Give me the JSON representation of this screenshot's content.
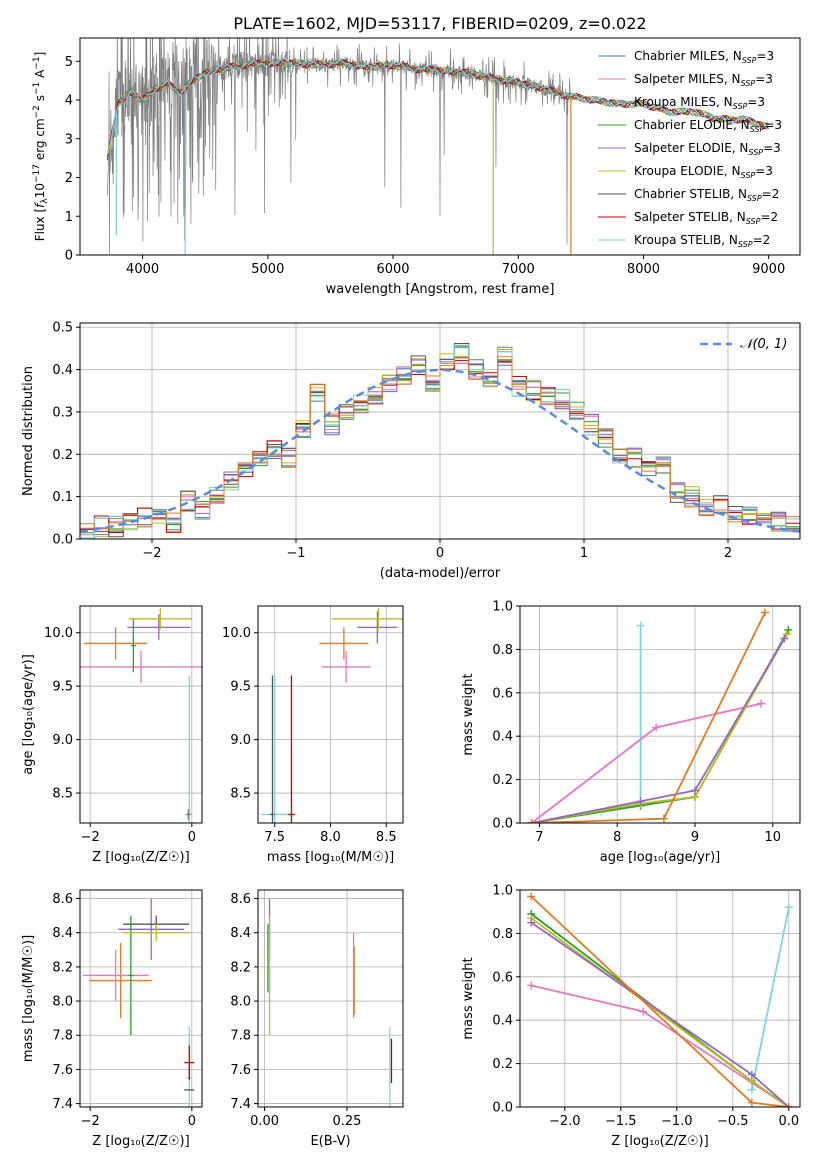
{
  "figure_title": "PLATE=1602, MJD=53117, FIBERID=0209, z=0.022",
  "colors": {
    "chabrier_miles": "#4c72b0",
    "salpeter_miles": "#e377c2",
    "kroupa_miles": "#7f7f7f",
    "chabrier_elodie": "#2ca02c",
    "salpeter_elodie": "#9467bd",
    "kroupa_elodie": "#bcbd22",
    "chabrier_stelib": "#555555",
    "salpeter_stelib": "#c00000",
    "kroupa_stelib": "#7ed4dc",
    "orange": "#e07b22",
    "gaussian": "#5b8bd9"
  },
  "chart_data": [
    {
      "type": "line",
      "title": "PLATE=1602, MJD=53117, FIBERID=0209, z=0.022",
      "xlabel": "wavelength [Angstrom, rest frame]",
      "ylabel": "Flux [f_λ 10^-17 erg cm^-2 s^-1 A^-1]",
      "ylabel_parts": [
        "Flux [",
        "f",
        "λ",
        "10",
        "−17",
        " erg cm",
        "−2",
        " s",
        "−1",
        " A",
        "−1",
        "]"
      ],
      "xlim": [
        3500,
        9250
      ],
      "ylim": [
        0,
        5.6
      ],
      "xticks": [
        4000,
        5000,
        6000,
        7000,
        8000,
        9000
      ],
      "yticks": [
        0,
        1,
        2,
        3,
        4,
        5
      ],
      "legend_position": "top-right",
      "legend": [
        {
          "name": "Chabrier MILES",
          "nssp": "3",
          "color": "#4c72b0"
        },
        {
          "name": "Salpeter MILES",
          "nssp": "3",
          "color": "#e377c2"
        },
        {
          "name": "Kroupa MILES",
          "nssp": "3",
          "color": "#7f7f7f"
        },
        {
          "name": "Chabrier ELODIE",
          "nssp": "3",
          "color": "#2ca02c"
        },
        {
          "name": "Salpeter ELODIE",
          "nssp": "3",
          "color": "#9467bd"
        },
        {
          "name": "Kroupa ELODIE",
          "nssp": "3",
          "color": "#bcbd22"
        },
        {
          "name": "Chabrier STELIB",
          "nssp": "2",
          "color": "#555555"
        },
        {
          "name": "Salpeter STELIB",
          "nssp": "2",
          "color": "#c00000"
        },
        {
          "name": "Kroupa STELIB",
          "nssp": "2",
          "color": "#7ed4dc"
        }
      ],
      "nssp_prefix": ", N",
      "nssp_sub": "SSP",
      "continuum": {
        "x": [
          3720,
          3800,
          3900,
          4000,
          4100,
          4200,
          4300,
          4400,
          4500,
          4600,
          4800,
          5000,
          5200,
          5400,
          5600,
          5800,
          6000,
          6200,
          6400,
          6600,
          6800,
          7000,
          7200,
          7400,
          7600,
          7800,
          8000,
          8200,
          8400,
          8600,
          8800,
          9000
        ],
        "y": [
          2.5,
          3.9,
          4.2,
          4.0,
          4.3,
          4.4,
          4.2,
          4.5,
          4.7,
          4.8,
          4.9,
          4.95,
          4.95,
          4.9,
          4.95,
          4.85,
          4.9,
          4.8,
          4.75,
          4.7,
          4.55,
          4.45,
          4.3,
          4.1,
          4.0,
          3.9,
          3.9,
          3.7,
          3.7,
          3.5,
          3.5,
          3.3
        ]
      },
      "noise_range": [
        3720,
        7420
      ],
      "model_dips": [
        {
          "x": 4340,
          "y": 0.0,
          "color": "#7ed4dc"
        },
        {
          "x": 3790,
          "y": 0.5,
          "color": "#7ed4dc"
        },
        {
          "x": 6800,
          "y": 0.0,
          "color": "#bcbd22"
        },
        {
          "x": 7420,
          "y": 0.0,
          "color": "#e07b22"
        }
      ]
    },
    {
      "type": "line",
      "xlabel": "(data-model)/error",
      "ylabel": "Normed distribution",
      "xlim": [
        -2.5,
        2.5
      ],
      "ylim": [
        0,
        0.51
      ],
      "xticks": [
        -2,
        -1,
        0,
        1,
        2
      ],
      "xtick_labels": [
        "−2",
        "−1",
        "0",
        "1",
        "2"
      ],
      "yticks": [
        0.0,
        0.1,
        0.2,
        0.3,
        0.4,
        0.5
      ],
      "ytick_labels": [
        "0.0",
        "0.1",
        "0.2",
        "0.3",
        "0.4",
        "0.5"
      ],
      "legend_position": "top-right",
      "gaussian_label": "𝒩(0, 1)",
      "bin_width": 0.1,
      "histogram_x": [
        -2.5,
        -2.4,
        -2.3,
        -2.2,
        -2.1,
        -2.0,
        -1.9,
        -1.8,
        -1.7,
        -1.6,
        -1.5,
        -1.4,
        -1.3,
        -1.2,
        -1.1,
        -1.0,
        -0.9,
        -0.8,
        -0.7,
        -0.6,
        -0.5,
        -0.4,
        -0.3,
        -0.2,
        -0.1,
        0.0,
        0.1,
        0.2,
        0.3,
        0.4,
        0.5,
        0.6,
        0.7,
        0.8,
        0.9,
        1.0,
        1.1,
        1.2,
        1.3,
        1.4,
        1.5,
        1.6,
        1.7,
        1.8,
        1.9,
        2.0,
        2.1,
        2.2,
        2.3,
        2.4
      ],
      "histogram_y": [
        0.02,
        0.03,
        0.03,
        0.04,
        0.05,
        0.05,
        0.04,
        0.09,
        0.07,
        0.1,
        0.14,
        0.17,
        0.19,
        0.21,
        0.19,
        0.26,
        0.35,
        0.27,
        0.3,
        0.32,
        0.34,
        0.37,
        0.39,
        0.41,
        0.37,
        0.42,
        0.44,
        0.4,
        0.38,
        0.43,
        0.36,
        0.35,
        0.34,
        0.33,
        0.3,
        0.27,
        0.24,
        0.2,
        0.19,
        0.17,
        0.18,
        0.11,
        0.1,
        0.08,
        0.08,
        0.06,
        0.05,
        0.04,
        0.04,
        0.03
      ]
    },
    {
      "type": "scatter",
      "xlabel": "Z [log₁₀(Z/Z☉)]",
      "ylabel": "age  [log₁₀(age/yr)]",
      "xlim": [
        -2.2,
        0.2
      ],
      "ylim": [
        8.22,
        10.25
      ],
      "xticks": [
        -2,
        0
      ],
      "xtick_labels": [
        "−2",
        "0"
      ],
      "yticks": [
        8.5,
        9.0,
        9.5,
        10.0
      ],
      "ytick_labels": [
        "8.5",
        "9.0",
        "9.5",
        "10.0"
      ],
      "errorbars": [
        {
          "x": -1.5,
          "y": 9.9,
          "xerr": 0.62,
          "yerr": 0.15,
          "color": "#e07b22"
        },
        {
          "x": -1.0,
          "y": 9.68,
          "xerr": 1.28,
          "yerr": 0.15,
          "color": "#e377c2"
        },
        {
          "x": -0.65,
          "y": 10.05,
          "xerr": 0.62,
          "yerr": 0.12,
          "color": "#9467bd"
        },
        {
          "x": -0.62,
          "y": 10.13,
          "xerr": 0.62,
          "yerr": 0.1,
          "color": "#bcbd22"
        },
        {
          "x": -1.15,
          "y": 9.88,
          "xerr": 0.05,
          "yerr": 0.25,
          "color": "#2ca02c"
        },
        {
          "x": -0.05,
          "y": 8.3,
          "xerr": 0.05,
          "yerr": 1.3,
          "color": "#7ed4dc"
        },
        {
          "x": -0.07,
          "y": 8.3,
          "xerr": 0.05,
          "yerr": 0.05,
          "color": "#7f7f7f"
        }
      ]
    },
    {
      "type": "scatter",
      "xlabel": "mass [log₁₀(M/M☉)]",
      "xlim": [
        7.35,
        8.65
      ],
      "ylim": [
        8.22,
        10.25
      ],
      "xticks": [
        7.5,
        8.0,
        8.5
      ],
      "xtick_labels": [
        "7.5",
        "8.0",
        "8.5"
      ],
      "yticks": [
        8.5,
        9.0,
        9.5,
        10.0
      ],
      "ytick_labels": [
        "8.5",
        "9.0",
        "9.5",
        "10.0"
      ],
      "errorbars": [
        {
          "x": 8.12,
          "y": 9.9,
          "xerr": 0.22,
          "yerr": 0.15,
          "color": "#e07b22"
        },
        {
          "x": 8.14,
          "y": 9.68,
          "xerr": 0.22,
          "yerr": 0.15,
          "color": "#e377c2"
        },
        {
          "x": 8.42,
          "y": 10.05,
          "xerr": 0.18,
          "yerr": 0.15,
          "color": "#9467bd"
        },
        {
          "x": 8.43,
          "y": 10.13,
          "xerr": 0.42,
          "yerr": 0.1,
          "color": "#bcbd22"
        },
        {
          "x": 7.5,
          "y": 8.3,
          "xerr": 0.12,
          "yerr": 1.3,
          "color": "#7ed4dc"
        },
        {
          "x": 7.48,
          "y": 8.3,
          "xerr": 0.02,
          "yerr": 1.3,
          "color": "#555555"
        },
        {
          "x": 7.65,
          "y": 8.3,
          "xerr": 0.03,
          "yerr": 1.3,
          "color": "#c00000"
        }
      ]
    },
    {
      "type": "line",
      "xlabel": "age  [log₁₀(age/yr)]",
      "ylabel": "mass weight",
      "xlim": [
        6.75,
        10.35
      ],
      "ylim": [
        0,
        1.0
      ],
      "xticks": [
        7,
        8,
        9,
        10
      ],
      "xtick_labels": [
        "7",
        "8",
        "9",
        "10"
      ],
      "yticks": [
        0.0,
        0.2,
        0.4,
        0.6,
        0.8,
        1.0
      ],
      "ytick_labels": [
        "0.0",
        "0.2",
        "0.4",
        "0.6",
        "0.8",
        "1.0"
      ],
      "series": [
        {
          "color": "#7ed4dc",
          "x": [
            8.3,
            8.3
          ],
          "y": [
            0.91,
            0.08
          ]
        },
        {
          "color": "#e377c2",
          "x": [
            6.9,
            8.5,
            9.85
          ],
          "y": [
            0.0,
            0.44,
            0.55
          ]
        },
        {
          "color": "#2ca02c",
          "x": [
            6.9,
            8.3,
            9.0,
            10.2
          ],
          "y": [
            0.0,
            0.08,
            0.12,
            0.89
          ]
        },
        {
          "color": "#bcbd22",
          "x": [
            6.9,
            8.3,
            9.0,
            10.18
          ],
          "y": [
            0.0,
            0.09,
            0.12,
            0.87
          ]
        },
        {
          "color": "#9467bd",
          "x": [
            6.9,
            8.3,
            9.0,
            10.15
          ],
          "y": [
            0.0,
            0.1,
            0.15,
            0.85
          ]
        },
        {
          "color": "#e07b22",
          "x": [
            6.9,
            8.6,
            9.9
          ],
          "y": [
            0.0,
            0.02,
            0.97
          ]
        }
      ]
    },
    {
      "type": "scatter",
      "xlabel": "Z [log₁₀(Z/Z☉)]",
      "ylabel": "mass [log₁₀(M/M☉)]",
      "xlim": [
        -2.2,
        0.2
      ],
      "ylim": [
        7.38,
        8.65
      ],
      "xticks": [
        -2,
        0
      ],
      "xtick_labels": [
        "−2",
        "0"
      ],
      "yticks": [
        7.4,
        7.6,
        7.8,
        8.0,
        8.2,
        8.4,
        8.6
      ],
      "ytick_labels": [
        "7.4",
        "7.6",
        "7.8",
        "8.0",
        "8.2",
        "8.4",
        "8.6"
      ],
      "errorbars": [
        {
          "x": -1.4,
          "y": 8.12,
          "xerr": 0.62,
          "yerr": 0.22,
          "color": "#e07b22"
        },
        {
          "x": -1.5,
          "y": 8.15,
          "xerr": 0.65,
          "yerr": 0.15,
          "color": "#e377c2"
        },
        {
          "x": -0.8,
          "y": 8.42,
          "xerr": 0.65,
          "yerr": 0.18,
          "color": "#9467bd"
        },
        {
          "x": -0.7,
          "y": 8.45,
          "xerr": 0.65,
          "yerr": 0.05,
          "color": "#555555"
        },
        {
          "x": -1.2,
          "y": 8.15,
          "xerr": 0.05,
          "yerr": 0.35,
          "color": "#2ca02c"
        },
        {
          "x": -0.7,
          "y": 8.4,
          "xerr": 0.65,
          "yerr": 0.05,
          "color": "#bcbd22"
        },
        {
          "x": -0.05,
          "y": 7.55,
          "xerr": 0.05,
          "yerr": 0.3,
          "color": "#7ed4dc"
        },
        {
          "x": -0.05,
          "y": 7.64,
          "xerr": 0.1,
          "yerr": 0.1,
          "color": "#c00000"
        },
        {
          "x": -0.05,
          "y": 7.48,
          "xerr": 0.1,
          "yerr": 0.0,
          "color": "#555555"
        }
      ]
    },
    {
      "type": "scatter",
      "xlabel": "E(B-V)",
      "xlim": [
        -0.02,
        0.42
      ],
      "ylim": [
        7.38,
        8.65
      ],
      "xticks": [
        0.0,
        0.25
      ],
      "xtick_labels": [
        "0.00",
        "0.25"
      ],
      "yticks": [
        7.4,
        7.6,
        7.8,
        8.0,
        8.2,
        8.4,
        8.6
      ],
      "ytick_labels": [
        "7.4",
        "7.6",
        "7.8",
        "8.0",
        "8.2",
        "8.4",
        "8.6"
      ],
      "errorbars": [
        {
          "x": 0.015,
          "y": 8.45,
          "xerr": 0,
          "yerr": 0.15,
          "color": "#9467bd"
        },
        {
          "x": 0.015,
          "y": 8.15,
          "xerr": 0,
          "yerr": 0.35,
          "color": "#bcbd22"
        },
        {
          "x": 0.01,
          "y": 8.25,
          "xerr": 0,
          "yerr": 0.2,
          "color": "#2ca02c"
        },
        {
          "x": 0.27,
          "y": 8.15,
          "xerr": 0,
          "yerr": 0.25,
          "color": "#e377c2"
        },
        {
          "x": 0.272,
          "y": 8.12,
          "xerr": 0,
          "yerr": 0.2,
          "color": "#e07b22"
        },
        {
          "x": 0.38,
          "y": 7.6,
          "xerr": 0,
          "yerr": 0.25,
          "color": "#7ed4dc"
        },
        {
          "x": 0.385,
          "y": 7.65,
          "xerr": 0,
          "yerr": 0.13,
          "color": "#c00000"
        }
      ]
    },
    {
      "type": "line",
      "xlabel": "Z [log₁₀(Z/Z☉)]",
      "ylabel": "mass weight",
      "xlim": [
        -2.4,
        0.1
      ],
      "ylim": [
        0,
        1.0
      ],
      "xticks": [
        -2.0,
        -1.5,
        -1.0,
        -0.5,
        0.0
      ],
      "xtick_labels": [
        "−2.0",
        "−1.5",
        "−1.0",
        "−0.5",
        "0.0"
      ],
      "yticks": [
        0.0,
        0.2,
        0.4,
        0.6,
        0.8,
        1.0
      ],
      "ytick_labels": [
        "0.0",
        "0.2",
        "0.4",
        "0.6",
        "0.8",
        "1.0"
      ],
      "series": [
        {
          "color": "#7ed4dc",
          "x": [
            -0.33,
            0.0
          ],
          "y": [
            0.08,
            0.92
          ]
        },
        {
          "color": "#e377c2",
          "x": [
            -2.3,
            -1.3,
            0.0
          ],
          "y": [
            0.56,
            0.44,
            0.0
          ]
        },
        {
          "color": "#2ca02c",
          "x": [
            -2.3,
            -0.33,
            0.0
          ],
          "y": [
            0.89,
            0.12,
            0.0
          ]
        },
        {
          "color": "#bcbd22",
          "x": [
            -2.3,
            -0.33,
            0.0
          ],
          "y": [
            0.87,
            0.12,
            0.0
          ]
        },
        {
          "color": "#9467bd",
          "x": [
            -2.3,
            -0.33,
            0.0
          ],
          "y": [
            0.85,
            0.15,
            0.0
          ]
        },
        {
          "color": "#e07b22",
          "x": [
            -2.3,
            -0.33,
            0.0
          ],
          "y": [
            0.97,
            0.02,
            0.0
          ]
        }
      ]
    }
  ]
}
